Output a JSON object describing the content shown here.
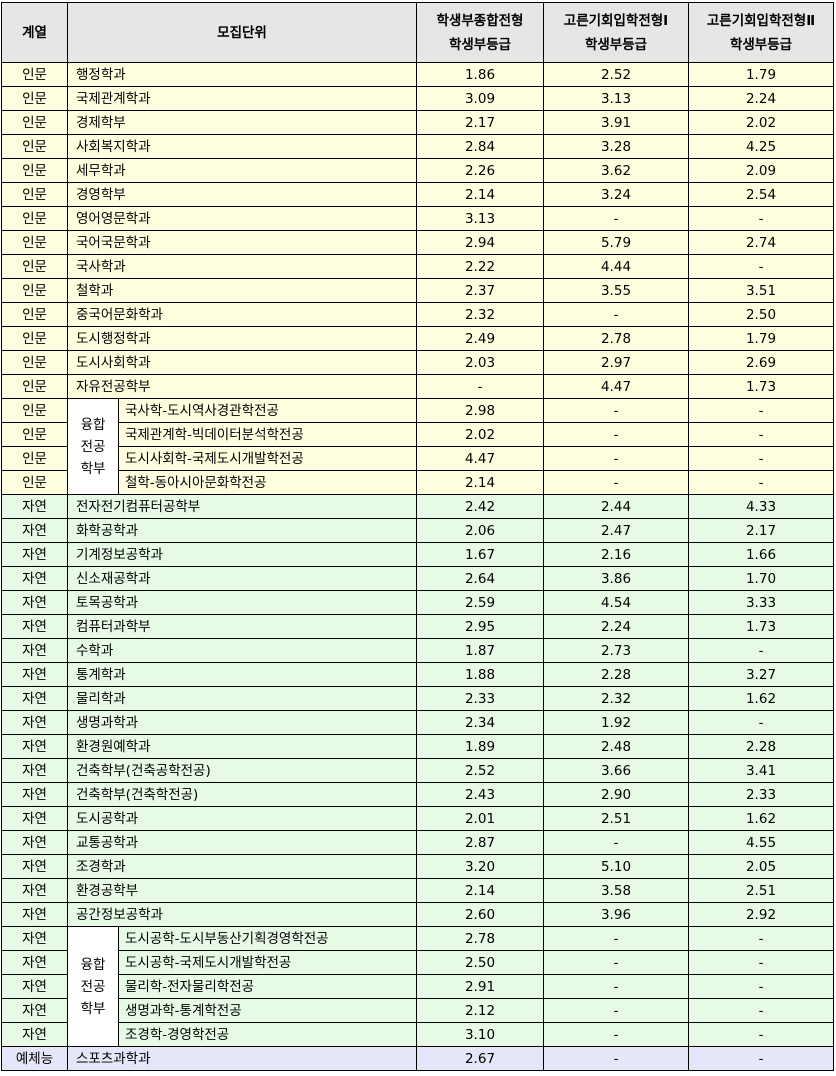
{
  "header": {
    "category": "계열",
    "unit": "모집단위",
    "col1_line1": "학생부종합전형",
    "col1_line2": "학생부등급",
    "col2_line1": "고른기회입학전형Ⅰ",
    "col2_line2": "학생부등급",
    "col3_line1": "고른기회입학전형Ⅱ",
    "col3_line2": "학생부등급"
  },
  "humanities_rows": [
    {
      "category": "인문",
      "dept": "행정학과",
      "v1": "1.86",
      "v2": "2.52",
      "v3": "1.79"
    },
    {
      "category": "인문",
      "dept": "국제관계학과",
      "v1": "3.09",
      "v2": "3.13",
      "v3": "2.24"
    },
    {
      "category": "인문",
      "dept": "경제학부",
      "v1": "2.17",
      "v2": "3.91",
      "v3": "2.02"
    },
    {
      "category": "인문",
      "dept": "사회복지학과",
      "v1": "2.84",
      "v2": "3.28",
      "v3": "4.25"
    },
    {
      "category": "인문",
      "dept": "세무학과",
      "v1": "2.26",
      "v2": "3.62",
      "v3": "2.09"
    },
    {
      "category": "인문",
      "dept": "경영학부",
      "v1": "2.14",
      "v2": "3.24",
      "v3": "2.54"
    },
    {
      "category": "인문",
      "dept": "영어영문학과",
      "v1": "3.13",
      "v2": "-",
      "v3": "-"
    },
    {
      "category": "인문",
      "dept": "국어국문학과",
      "v1": "2.94",
      "v2": "5.79",
      "v3": "2.74"
    },
    {
      "category": "인문",
      "dept": "국사학과",
      "v1": "2.22",
      "v2": "4.44",
      "v3": "-"
    },
    {
      "category": "인문",
      "dept": "철학과",
      "v1": "2.37",
      "v2": "3.55",
      "v3": "3.51"
    },
    {
      "category": "인문",
      "dept": "중국어문화학과",
      "v1": "2.32",
      "v2": "-",
      "v3": "2.50"
    },
    {
      "category": "인문",
      "dept": "도시행정학과",
      "v1": "2.49",
      "v2": "2.78",
      "v3": "1.79"
    },
    {
      "category": "인문",
      "dept": "도시사회학과",
      "v1": "2.03",
      "v2": "2.97",
      "v3": "2.69"
    },
    {
      "category": "인문",
      "dept": "자유전공학부",
      "v1": "-",
      "v2": "4.47",
      "v3": "1.73"
    }
  ],
  "humanities_converged": {
    "group_label_1": "융합",
    "group_label_2": "전공",
    "group_label_3": "학부",
    "rows": [
      {
        "category": "인문",
        "sub": "국사학-도시역사경관학전공",
        "v1": "2.98",
        "v2": "-",
        "v3": "-"
      },
      {
        "category": "인문",
        "sub": "국제관계학-빅데이터분석학전공",
        "v1": "2.02",
        "v2": "-",
        "v3": "-"
      },
      {
        "category": "인문",
        "sub": "도시사회학-국제도시개발학전공",
        "v1": "4.47",
        "v2": "-",
        "v3": "-"
      },
      {
        "category": "인문",
        "sub": "철학-동아시아문화학전공",
        "v1": "2.14",
        "v2": "-",
        "v3": "-"
      }
    ]
  },
  "natural_rows": [
    {
      "category": "자연",
      "dept": "전자전기컴퓨터공학부",
      "v1": "2.42",
      "v2": "2.44",
      "v3": "4.33"
    },
    {
      "category": "자연",
      "dept": "화학공학과",
      "v1": "2.06",
      "v2": "2.47",
      "v3": "2.17"
    },
    {
      "category": "자연",
      "dept": "기계정보공학과",
      "v1": "1.67",
      "v2": "2.16",
      "v3": "1.66"
    },
    {
      "category": "자연",
      "dept": "신소재공학과",
      "v1": "2.64",
      "v2": "3.86",
      "v3": "1.70"
    },
    {
      "category": "자연",
      "dept": "토목공학과",
      "v1": "2.59",
      "v2": "4.54",
      "v3": "3.33"
    },
    {
      "category": "자연",
      "dept": "컴퓨터과학부",
      "v1": "2.95",
      "v2": "2.24",
      "v3": "1.73"
    },
    {
      "category": "자연",
      "dept": "수학과",
      "v1": "1.87",
      "v2": "2.73",
      "v3": "-"
    },
    {
      "category": "자연",
      "dept": "통계학과",
      "v1": "1.88",
      "v2": "2.28",
      "v3": "3.27"
    },
    {
      "category": "자연",
      "dept": "물리학과",
      "v1": "2.33",
      "v2": "2.32",
      "v3": "1.62"
    },
    {
      "category": "자연",
      "dept": "생명과학과",
      "v1": "2.34",
      "v2": "1.92",
      "v3": "-"
    },
    {
      "category": "자연",
      "dept": "환경원예학과",
      "v1": "1.89",
      "v2": "2.48",
      "v3": "2.28"
    },
    {
      "category": "자연",
      "dept": "건축학부(건축공학전공)",
      "v1": "2.52",
      "v2": "3.66",
      "v3": "3.41"
    },
    {
      "category": "자연",
      "dept": "건축학부(건축학전공)",
      "v1": "2.43",
      "v2": "2.90",
      "v3": "2.33"
    },
    {
      "category": "자연",
      "dept": "도시공학과",
      "v1": "2.01",
      "v2": "2.51",
      "v3": "1.62"
    },
    {
      "category": "자연",
      "dept": "교통공학과",
      "v1": "2.87",
      "v2": "-",
      "v3": "4.55"
    },
    {
      "category": "자연",
      "dept": "조경학과",
      "v1": "3.20",
      "v2": "5.10",
      "v3": "2.05"
    },
    {
      "category": "자연",
      "dept": "환경공학부",
      "v1": "2.14",
      "v2": "3.58",
      "v3": "2.51"
    },
    {
      "category": "자연",
      "dept": "공간정보공학과",
      "v1": "2.60",
      "v2": "3.96",
      "v3": "2.92"
    }
  ],
  "natural_converged": {
    "group_label_1": "융합",
    "group_label_2": "전공",
    "group_label_3": "학부",
    "rows": [
      {
        "category": "자연",
        "sub": "도시공학-도시부동산기획경영학전공",
        "v1": "2.78",
        "v2": "-",
        "v3": "-"
      },
      {
        "category": "자연",
        "sub": "도시공학-국제도시개발학전공",
        "v1": "2.50",
        "v2": "-",
        "v3": "-"
      },
      {
        "category": "자연",
        "sub": "물리학-전자물리학전공",
        "v1": "2.91",
        "v2": "-",
        "v3": "-"
      },
      {
        "category": "자연",
        "sub": "생명과학-통계학전공",
        "v1": "2.12",
        "v2": "-",
        "v3": "-"
      },
      {
        "category": "자연",
        "sub": "조경학-경영학전공",
        "v1": "3.10",
        "v2": "-",
        "v3": "-"
      }
    ]
  },
  "arts_rows": [
    {
      "category": "예체능",
      "dept": "스포츠과학과",
      "v1": "2.67",
      "v2": "-",
      "v3": "-"
    }
  ]
}
